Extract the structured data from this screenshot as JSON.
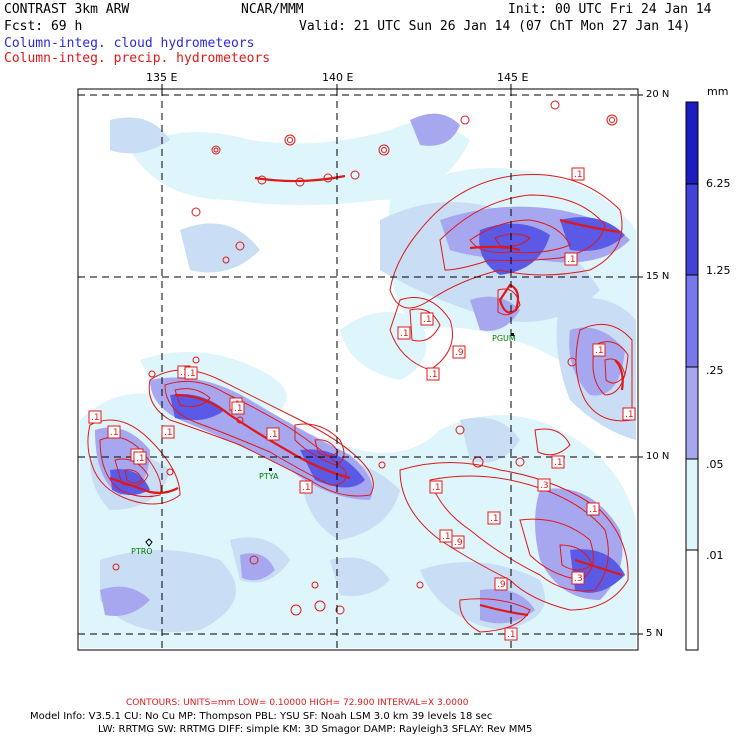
{
  "header": {
    "title_left": "CONTRAST  3km ARW",
    "title_center": "NCAR/MMM",
    "init": "Init: 00 UTC Fri 24 Jan 14",
    "fcst": "Fcst:   69 h",
    "valid": "Valid: 21 UTC Sun 26 Jan 14 (07 ChT Mon 27 Jan 14)",
    "legend_cloud": "Column-integ. cloud hydrometeors",
    "legend_precip": "Column-integ. precip. hydrometeors"
  },
  "colors": {
    "fill_levels": [
      "#ffffff",
      "#ddf5fb",
      "#c9ddf5",
      "#a7a7f0",
      "#7070ea",
      "#4242d8",
      "#1c1cc0"
    ],
    "contour": "#e01818",
    "grid": "#000000",
    "station": "#007a00"
  },
  "axes": {
    "lon_labels": [
      "135 E",
      "140 E",
      "145 E"
    ],
    "lat_labels": [
      "20 N",
      "15 N",
      "10 N",
      "5 N"
    ]
  },
  "colorbar": {
    "unit": "mm",
    "labels": [
      "6.25",
      "1.25",
      ".25",
      ".05",
      ".01"
    ]
  },
  "stations": [
    "PGUM",
    "PTYA",
    "PTRO"
  ],
  "contour_labels": [
    ".1",
    ".1",
    ".1",
    ".1",
    ".1",
    ".1",
    ".9",
    ".1",
    ".1",
    ".1",
    ".1",
    ".1",
    ".1",
    ".1",
    ".1",
    ".1",
    ".1",
    ".9",
    ".1",
    ".1",
    ".3",
    ".1",
    ".3",
    ".9",
    ".1",
    ".1",
    ".1",
    ".1",
    ".1",
    ".1"
  ],
  "footer": {
    "contours": "CONTOURS:  UNITS=mm  LOW= 0.10000       HIGH=  72.900       INTERVAL=X  3.0000",
    "model_line1": "Model Info: V3.5.1     CU: No Cu     MP: Thompson     PBL: YSU       SF: Noah LSM     3.0 km   39 levels    18 sec",
    "model_line2": "LW: RRTMG     SW: RRTMG   DIFF: simple KM: 3D Smagor DAMP: Rayleigh3   SFLAY: Rev MM5"
  }
}
